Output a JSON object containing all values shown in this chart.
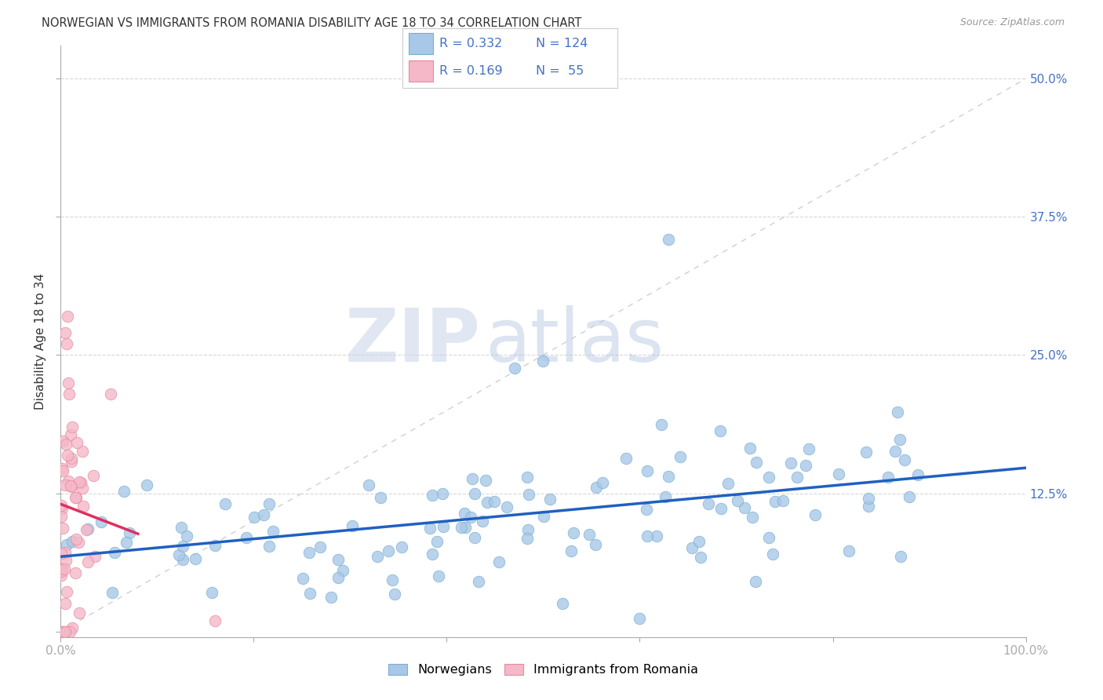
{
  "title": "NORWEGIAN VS IMMIGRANTS FROM ROMANIA DISABILITY AGE 18 TO 34 CORRELATION CHART",
  "source": "Source: ZipAtlas.com",
  "ylabel": "Disability Age 18 to 34",
  "xlim": [
    0.0,
    1.0
  ],
  "ylim": [
    -0.005,
    0.53
  ],
  "blue_color": "#a8c8e8",
  "blue_edge": "#7aaed0",
  "pink_color": "#f4b8c8",
  "pink_edge": "#e888a0",
  "trend_blue": "#2060c0",
  "trend_pink": "#e03060",
  "diag_color": "#d0d0d0",
  "R_blue": 0.332,
  "N_blue": 124,
  "R_pink": 0.169,
  "N_pink": 55,
  "watermark_zip": "ZIP",
  "watermark_atlas": "atlas",
  "background_color": "#ffffff",
  "grid_color": "#d8d8d8",
  "axis_color": "#aaaaaa",
  "text_color": "#333333",
  "blue_label_color": "#4472c4",
  "legend_r_color": "#4472c4",
  "title_fontsize": 10.5,
  "tick_fontsize": 11,
  "label_fontsize": 11
}
